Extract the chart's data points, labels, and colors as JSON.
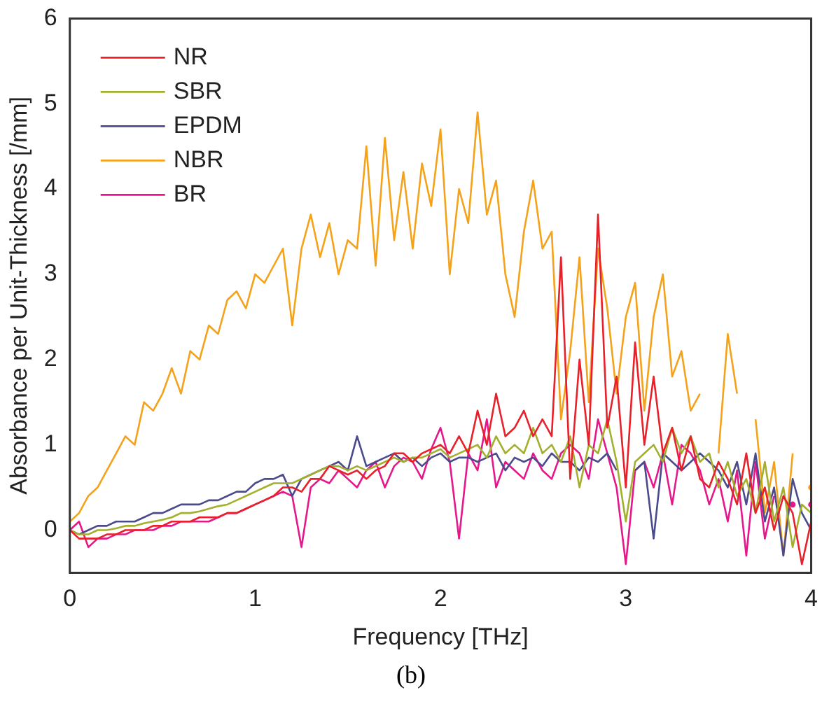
{
  "chart_data": {
    "type": "line",
    "xlabel": "Frequency [THz]",
    "ylabel": "Absorbance per Unit-Thickness [/mm]",
    "annotations": [
      "(b)"
    ],
    "x": [
      0,
      0.05,
      0.1,
      0.15,
      0.2,
      0.25,
      0.3,
      0.35,
      0.4,
      0.45,
      0.5,
      0.55,
      0.6,
      0.65,
      0.7,
      0.75,
      0.8,
      0.85,
      0.9,
      0.95,
      1,
      1.05,
      1.1,
      1.15,
      1.2,
      1.25,
      1.3,
      1.35,
      1.4,
      1.45,
      1.5,
      1.55,
      1.6,
      1.65,
      1.7,
      1.75,
      1.8,
      1.85,
      1.9,
      1.95,
      2,
      2.05,
      2.1,
      2.15,
      2.2,
      2.25,
      2.3,
      2.35,
      2.4,
      2.45,
      2.5,
      2.55,
      2.6,
      2.65,
      2.7,
      2.75,
      2.8,
      2.85,
      2.9,
      2.95,
      3,
      3.05,
      3.1,
      3.15,
      3.2,
      3.25,
      3.3,
      3.35,
      3.4,
      3.45,
      3.5,
      3.55,
      3.6,
      3.65,
      3.7,
      3.75,
      3.8,
      3.85,
      3.9,
      3.95,
      4
    ],
    "series": [
      {
        "name": "NR",
        "color": "#e8202a",
        "values": [
          0,
          -0.1,
          -0.1,
          -0.1,
          -0.05,
          -0.05,
          0,
          0,
          0,
          0.05,
          0.05,
          0.1,
          0.1,
          0.1,
          0.15,
          0.15,
          0.15,
          0.2,
          0.2,
          0.25,
          0.3,
          0.35,
          0.4,
          0.5,
          0.5,
          0.45,
          0.6,
          0.6,
          0.75,
          0.7,
          0.65,
          0.7,
          0.6,
          0.7,
          0.75,
          0.9,
          0.9,
          0.8,
          0.9,
          0.95,
          1,
          0.9,
          1.1,
          0.9,
          1.4,
          1,
          1.6,
          1.1,
          1.2,
          1.4,
          1.1,
          1.3,
          1.1,
          3.2,
          0.6,
          2,
          1,
          3.7,
          1.2,
          1.8,
          0.5,
          2.2,
          1,
          1.8,
          0.9,
          1.2,
          0.7,
          1.1,
          0.6,
          0.5,
          0.8,
          0.6,
          0.3,
          0.9,
          0.2,
          0.5,
          0,
          0.4,
          0.2,
          -0.4,
          0.1
        ]
      },
      {
        "name": "SBR",
        "color": "#a3b02e",
        "values": [
          0,
          -0.05,
          -0.05,
          0,
          0,
          0.02,
          0.05,
          0.05,
          0.08,
          0.1,
          0.12,
          0.15,
          0.2,
          0.2,
          0.22,
          0.25,
          0.28,
          0.3,
          0.35,
          0.4,
          0.45,
          0.5,
          0.55,
          0.55,
          0.55,
          0.6,
          0.65,
          0.7,
          0.75,
          0.75,
          0.7,
          0.75,
          0.7,
          0.75,
          0.8,
          0.85,
          0.8,
          0.85,
          0.85,
          0.9,
          0.95,
          0.85,
          0.9,
          0.95,
          1,
          0.85,
          1.1,
          0.9,
          1,
          0.9,
          1.2,
          0.9,
          1,
          0.8,
          1.1,
          0.5,
          1,
          0.9,
          1.3,
          0.8,
          0.1,
          0.8,
          0.9,
          1,
          0.8,
          1.2,
          0.9,
          1.1,
          0.8,
          0.9,
          0.5,
          0.8,
          0.4,
          0.6,
          0.2,
          0.8,
          0.1,
          0.5,
          -0.2,
          0.3,
          0.2
        ]
      },
      {
        "name": "EPDM",
        "color": "#4a4a8c",
        "values": [
          0,
          -0.05,
          0,
          0.05,
          0.05,
          0.1,
          0.1,
          0.1,
          0.15,
          0.2,
          0.2,
          0.25,
          0.3,
          0.3,
          0.3,
          0.35,
          0.35,
          0.4,
          0.45,
          0.45,
          0.55,
          0.6,
          0.6,
          0.65,
          0.4,
          0.6,
          0.65,
          0.7,
          0.75,
          0.8,
          0.7,
          1.1,
          0.75,
          0.8,
          0.85,
          0.9,
          0.8,
          0.85,
          0.75,
          0.85,
          0.9,
          0.8,
          0.85,
          0.85,
          0.8,
          0.85,
          0.9,
          0.7,
          0.85,
          0.8,
          0.85,
          0.75,
          0.9,
          0.8,
          0.8,
          0.7,
          0.85,
          0.8,
          0.9,
          0.7,
          null,
          0.7,
          0.8,
          -0.1,
          0.9,
          0.8,
          0.7,
          0.8,
          0.9,
          0.8,
          0.7,
          0.5,
          0.8,
          0.3,
          0.9,
          0.1,
          0.5,
          -0.3,
          0.6,
          0.2,
          0
        ]
      },
      {
        "name": "NBR",
        "color": "#f5a21b",
        "values": [
          0.1,
          0.2,
          0.4,
          0.5,
          0.7,
          0.9,
          1.1,
          1,
          1.5,
          1.4,
          1.6,
          1.9,
          1.6,
          2.1,
          2,
          2.4,
          2.3,
          2.7,
          2.8,
          2.6,
          3,
          2.9,
          3.1,
          3.3,
          2.4,
          3.3,
          3.7,
          3.2,
          3.6,
          3,
          3.4,
          3.3,
          4.5,
          3.1,
          4.6,
          3.4,
          4.2,
          3.3,
          4.3,
          3.8,
          4.7,
          3,
          4,
          3.6,
          4.9,
          3.7,
          4.1,
          3,
          2.5,
          3.5,
          4.1,
          3.3,
          3.5,
          1.3,
          2.1,
          3.2,
          1.5,
          3.3,
          2.6,
          1.6,
          2.5,
          2.9,
          1.4,
          2.5,
          3,
          1.8,
          2.1,
          1.4,
          1.6,
          null,
          0.9,
          2.3,
          1.6,
          null,
          1.3,
          0.2,
          0.8,
          -0.3,
          0.9,
          null,
          0.5
        ]
      },
      {
        "name": "BR",
        "color": "#e6178a",
        "values": [
          0,
          0.1,
          -0.2,
          -0.1,
          -0.1,
          -0.05,
          -0.05,
          0,
          0,
          0,
          0.05,
          0.05,
          0.1,
          0.1,
          0.1,
          0.1,
          0.15,
          0.2,
          0.2,
          0.25,
          0.3,
          0.35,
          0.4,
          0.45,
          0.4,
          -0.2,
          0.5,
          0.6,
          0.55,
          0.7,
          0.6,
          0.5,
          0.7,
          0.8,
          0.5,
          0.75,
          0.85,
          0.8,
          0.6,
          0.95,
          1.2,
          0.8,
          -0.1,
          0.9,
          0.7,
          1.3,
          0.5,
          0.8,
          0.7,
          0.6,
          0.9,
          0.7,
          0.6,
          0.9,
          1,
          0.9,
          0.6,
          1.3,
          0.9,
          0.5,
          -0.4,
          0.7,
          0.8,
          0.5,
          0.9,
          0.3,
          1,
          0.9,
          0.7,
          0.3,
          0.6,
          0.1,
          0.7,
          -0.3,
          0.8,
          -0.1,
          0.4,
          null,
          0.3,
          null,
          0.3
        ]
      }
    ],
    "xlim": [
      0,
      4
    ],
    "xticks": [
      0,
      1,
      2,
      3,
      4
    ],
    "ylim": [
      -0.5,
      6
    ],
    "yticks": [
      0,
      1,
      2,
      3,
      4,
      5,
      6
    ],
    "grid": false,
    "legend": "top left",
    "marker": "none",
    "line_style": "solid"
  }
}
